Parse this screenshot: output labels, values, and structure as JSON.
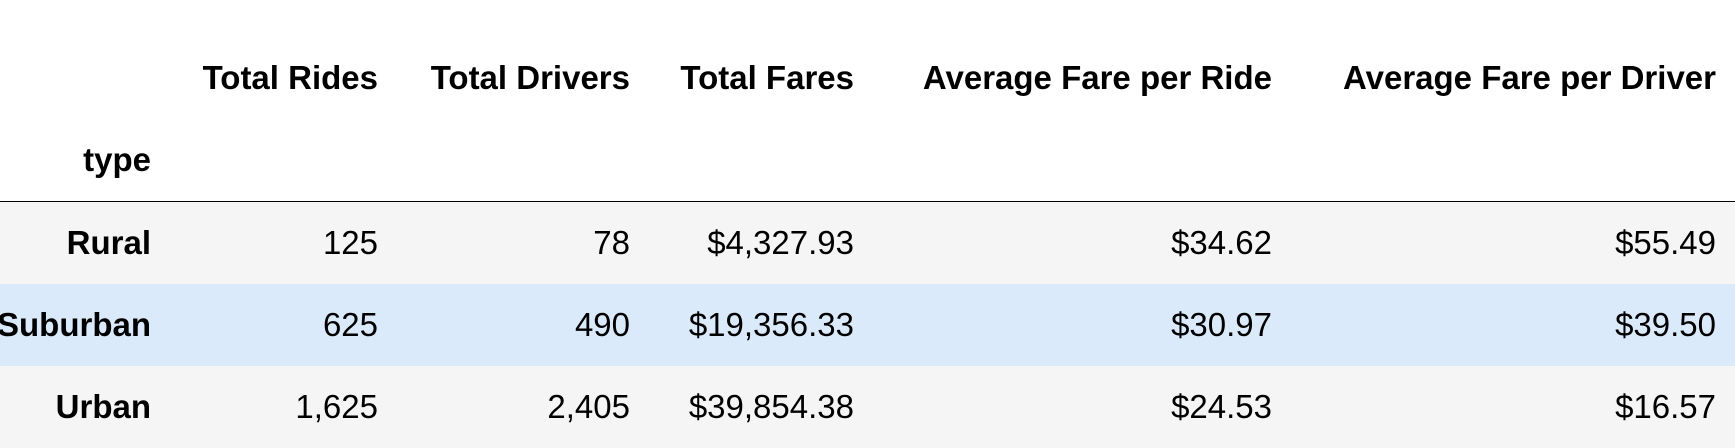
{
  "table": {
    "index_name": "type",
    "columns": [
      "Total Rides",
      "Total Drivers",
      "Total Fares",
      "Average Fare per Ride",
      "Average Fare per Driver"
    ],
    "rows": [
      {
        "label": "Rural",
        "cells": [
          "125",
          "78",
          "$4,327.93",
          "$34.62",
          "$55.49"
        ]
      },
      {
        "label": "Suburban",
        "cells": [
          "625",
          "490",
          "$19,356.33",
          "$30.97",
          "$39.50"
        ]
      },
      {
        "label": "Urban",
        "cells": [
          "1,625",
          "2,405",
          "$39,854.38",
          "$24.53",
          "$16.57"
        ]
      }
    ]
  },
  "colors": {
    "odd_row": "#f5f5f5",
    "hover_row": "#dbeafa",
    "rule": "#000000"
  }
}
